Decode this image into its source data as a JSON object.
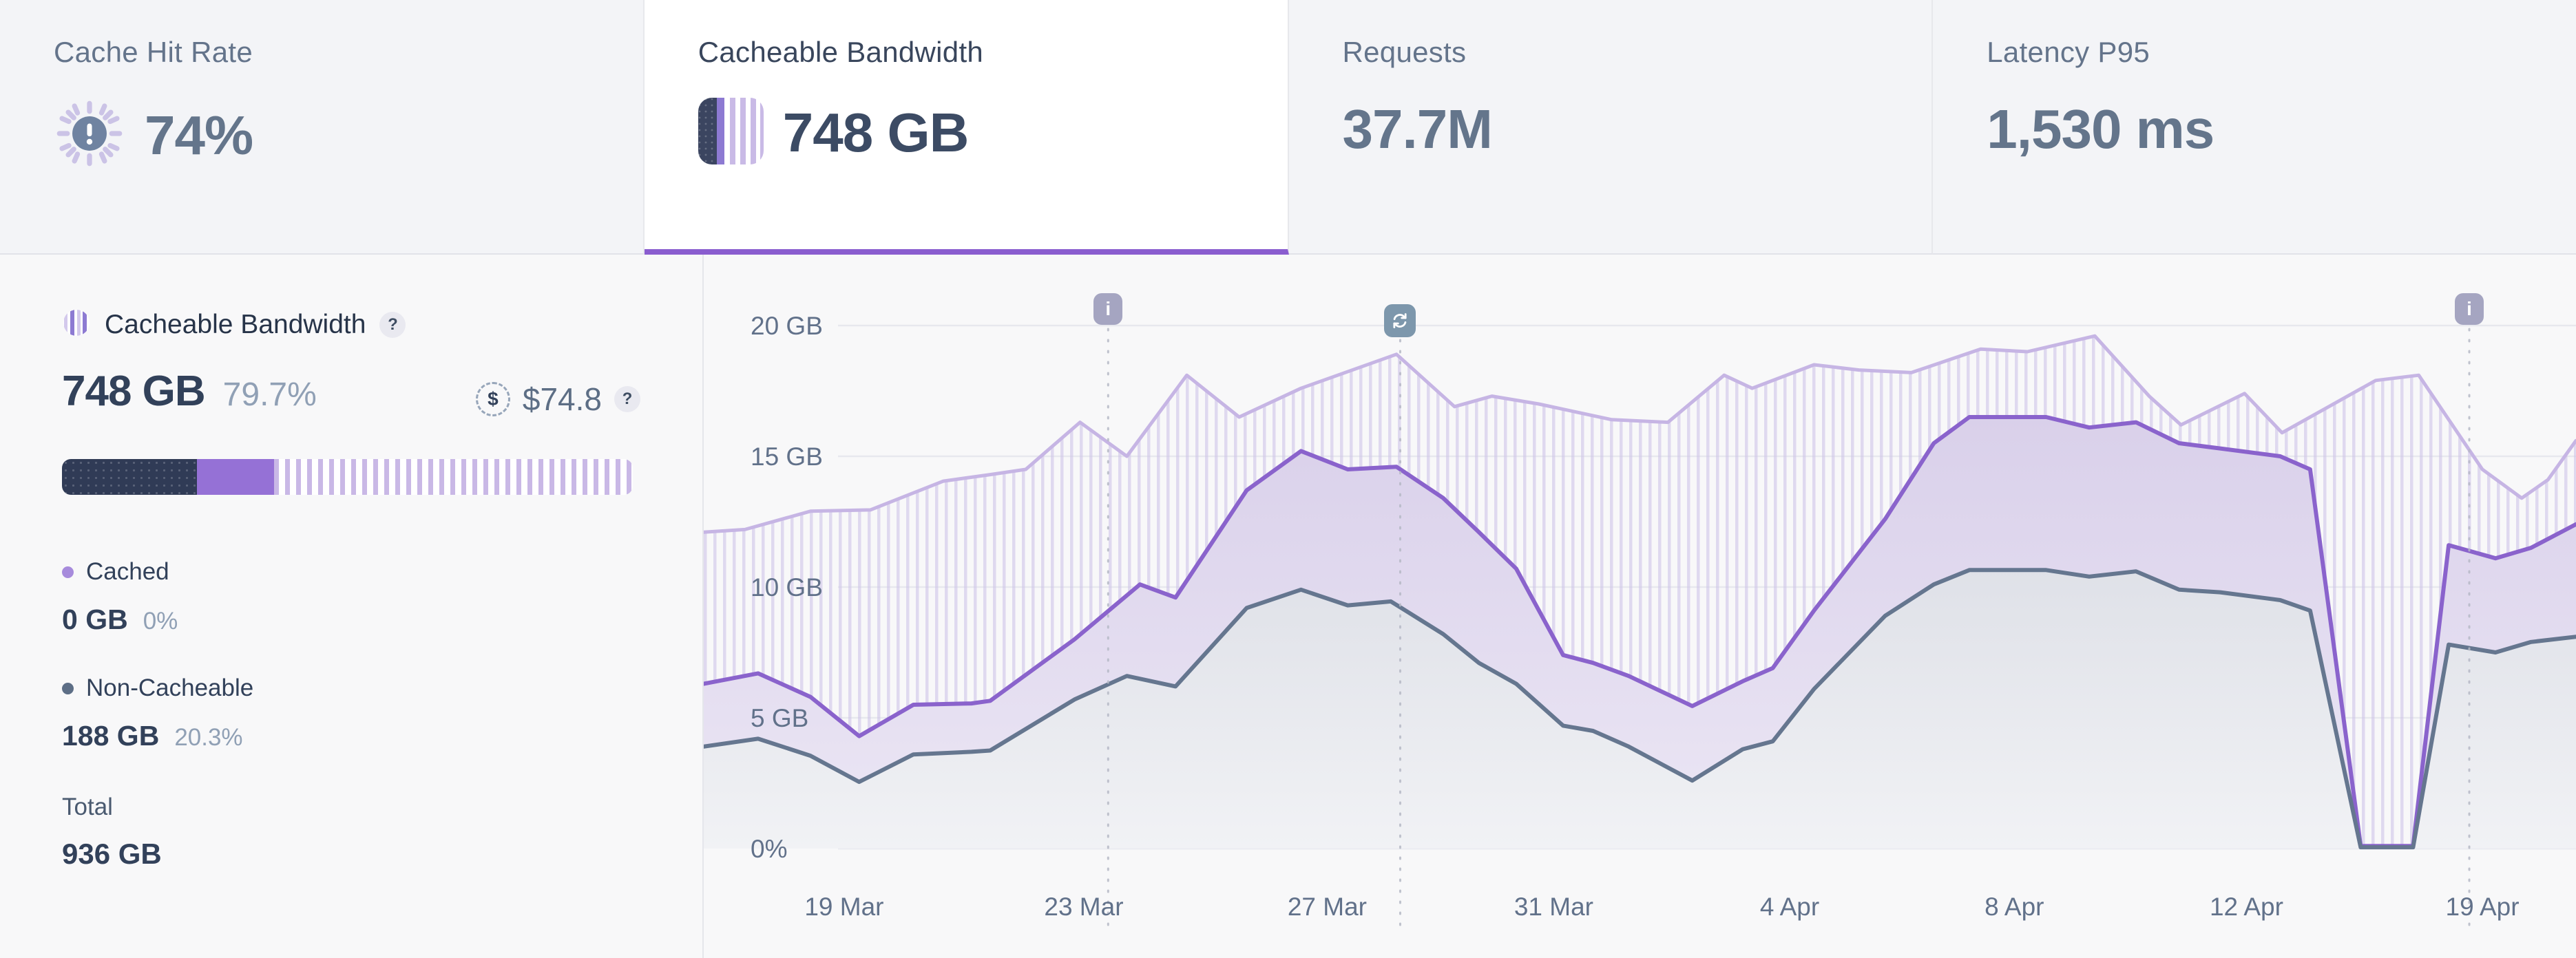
{
  "accent_color": "#8a5dcf",
  "tabs": [
    {
      "label": "Cache Hit Rate",
      "value": "74%",
      "icon": "alert-sun-icon",
      "active": false
    },
    {
      "label": "Cacheable Bandwidth",
      "value": "748 GB",
      "icon": "striped-bar-icon",
      "active": true
    },
    {
      "label": "Requests",
      "value": "37.7M",
      "icon": null,
      "active": false
    },
    {
      "label": "Latency P95",
      "value": "1,530 ms",
      "icon": null,
      "active": false
    }
  ],
  "panel": {
    "title": "Cacheable Bandwidth",
    "title_help": "?",
    "value": "748 GB",
    "percent": "79.7%",
    "cost_currency_symbol": "$",
    "cost_value": "$74.8",
    "cost_help": "?",
    "bar": {
      "dark_pct": 23.6,
      "purple_pct": 13.5,
      "striped_pct": 62.9,
      "dark_color": "#303b56",
      "purple_color": "#9571d6",
      "stripe_color": "#c9b8e6"
    },
    "legend": [
      {
        "label": "Cached",
        "dot_color": "#a78bdc",
        "value": "0 GB",
        "percent": "0%"
      },
      {
        "label": "Non-Cacheable",
        "dot_color": "#5d6e86",
        "value": "188 GB",
        "percent": "20.3%"
      }
    ],
    "total_label": "Total",
    "total_value": "936 GB"
  },
  "chart_data": {
    "type": "area",
    "unit": "GB",
    "ylim": [
      0,
      21
    ],
    "grid": true,
    "legend_position": "none",
    "y_ticks": [
      {
        "v": 20,
        "label": "20 GB"
      },
      {
        "v": 15,
        "label": "15 GB"
      },
      {
        "v": 10,
        "label": "10 GB"
      },
      {
        "v": 5,
        "label": "5 GB"
      },
      {
        "v": 0,
        "label": "0%"
      }
    ],
    "x_ticks": [
      {
        "f": 0.075,
        "label": "19 Mar"
      },
      {
        "f": 0.203,
        "label": "23 Mar"
      },
      {
        "f": 0.333,
        "label": "27 Mar"
      },
      {
        "f": 0.454,
        "label": "31 Mar"
      },
      {
        "f": 0.58,
        "label": "4 Apr"
      },
      {
        "f": 0.7,
        "label": "8 Apr"
      },
      {
        "f": 0.824,
        "label": "12 Apr"
      },
      {
        "f": 0.95,
        "label": "19 Apr"
      }
    ],
    "annotations": [
      {
        "f": 0.216,
        "icon": "info"
      },
      {
        "f": 0.372,
        "icon": "refresh"
      },
      {
        "f": 0.943,
        "icon": "info"
      }
    ],
    "series": [
      {
        "name": "Cacheable",
        "color": "#c6b5e4",
        "width": 5,
        "fill": "hatch",
        "points": [
          [
            0,
            12.1
          ],
          [
            0.022,
            12.2
          ],
          [
            0.057,
            12.9
          ],
          [
            0.089,
            12.95
          ],
          [
            0.128,
            14.05
          ],
          [
            0.153,
            14.3
          ],
          [
            0.172,
            14.5
          ],
          [
            0.201,
            16.3
          ],
          [
            0.226,
            15.0
          ],
          [
            0.258,
            18.1
          ],
          [
            0.286,
            16.5
          ],
          [
            0.319,
            17.6
          ],
          [
            0.37,
            18.9
          ],
          [
            0.401,
            16.9
          ],
          [
            0.421,
            17.3
          ],
          [
            0.446,
            17.0
          ],
          [
            0.485,
            16.4
          ],
          [
            0.515,
            16.3
          ],
          [
            0.545,
            18.1
          ],
          [
            0.56,
            17.6
          ],
          [
            0.593,
            18.5
          ],
          [
            0.617,
            18.3
          ],
          [
            0.645,
            18.2
          ],
          [
            0.682,
            19.1
          ],
          [
            0.707,
            19.0
          ],
          [
            0.743,
            19.6
          ],
          [
            0.772,
            17.3
          ],
          [
            0.789,
            16.2
          ],
          [
            0.823,
            17.4
          ],
          [
            0.843,
            15.9
          ],
          [
            0.893,
            17.9
          ],
          [
            0.916,
            18.1
          ],
          [
            0.95,
            14.5
          ],
          [
            0.971,
            13.4
          ],
          [
            0.985,
            14.1
          ],
          [
            1,
            15.6
          ]
        ]
      },
      {
        "name": "Cached",
        "color": "#8a63cc",
        "width": 6,
        "fill": "purple",
        "points": [
          [
            0,
            6.3
          ],
          [
            0.029,
            6.7
          ],
          [
            0.057,
            5.8
          ],
          [
            0.083,
            4.3
          ],
          [
            0.112,
            5.5
          ],
          [
            0.143,
            5.55
          ],
          [
            0.153,
            5.65
          ],
          [
            0.198,
            8.0
          ],
          [
            0.233,
            10.1
          ],
          [
            0.252,
            9.6
          ],
          [
            0.29,
            13.7
          ],
          [
            0.319,
            15.2
          ],
          [
            0.344,
            14.5
          ],
          [
            0.37,
            14.6
          ],
          [
            0.395,
            13.4
          ],
          [
            0.414,
            12.1
          ],
          [
            0.434,
            10.7
          ],
          [
            0.459,
            7.4
          ],
          [
            0.475,
            7.1
          ],
          [
            0.494,
            6.6
          ],
          [
            0.528,
            5.45
          ],
          [
            0.555,
            6.4
          ],
          [
            0.571,
            6.9
          ],
          [
            0.593,
            9.1
          ],
          [
            0.631,
            12.6
          ],
          [
            0.657,
            15.5
          ],
          [
            0.676,
            16.5
          ],
          [
            0.717,
            16.5
          ],
          [
            0.74,
            16.1
          ],
          [
            0.765,
            16.3
          ],
          [
            0.788,
            15.5
          ],
          [
            0.81,
            15.3
          ],
          [
            0.842,
            15.0
          ],
          [
            0.858,
            14.5
          ],
          [
            0.885,
            0.1
          ],
          [
            0.913,
            0.1
          ],
          [
            0.932,
            11.6
          ],
          [
            0.957,
            11.1
          ],
          [
            0.976,
            11.5
          ],
          [
            1,
            12.4
          ]
        ]
      },
      {
        "name": "Non-Cacheable",
        "color": "#65768f",
        "width": 6,
        "fill": "gray",
        "points": [
          [
            0,
            3.9
          ],
          [
            0.029,
            4.2
          ],
          [
            0.057,
            3.55
          ],
          [
            0.083,
            2.55
          ],
          [
            0.112,
            3.6
          ],
          [
            0.143,
            3.7
          ],
          [
            0.153,
            3.75
          ],
          [
            0.198,
            5.7
          ],
          [
            0.226,
            6.6
          ],
          [
            0.252,
            6.2
          ],
          [
            0.29,
            9.2
          ],
          [
            0.319,
            9.9
          ],
          [
            0.344,
            9.3
          ],
          [
            0.367,
            9.45
          ],
          [
            0.395,
            8.2
          ],
          [
            0.414,
            7.1
          ],
          [
            0.434,
            6.3
          ],
          [
            0.459,
            4.7
          ],
          [
            0.475,
            4.5
          ],
          [
            0.494,
            3.9
          ],
          [
            0.528,
            2.6
          ],
          [
            0.555,
            3.8
          ],
          [
            0.571,
            4.1
          ],
          [
            0.593,
            6.1
          ],
          [
            0.631,
            8.9
          ],
          [
            0.657,
            10.1
          ],
          [
            0.676,
            10.65
          ],
          [
            0.717,
            10.65
          ],
          [
            0.74,
            10.4
          ],
          [
            0.765,
            10.6
          ],
          [
            0.788,
            9.9
          ],
          [
            0.81,
            9.8
          ],
          [
            0.842,
            9.5
          ],
          [
            0.858,
            9.1
          ],
          [
            0.885,
            0.05
          ],
          [
            0.913,
            0.05
          ],
          [
            0.932,
            7.8
          ],
          [
            0.957,
            7.5
          ],
          [
            0.976,
            7.9
          ],
          [
            1,
            8.1
          ]
        ]
      }
    ]
  }
}
